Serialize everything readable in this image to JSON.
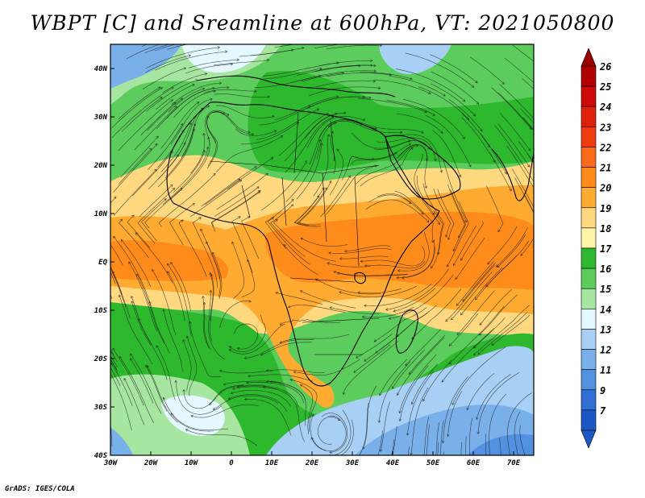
{
  "title": "WBPT [C] and Sreamline at 600hPa, VT: 2021050800",
  "credit": "GrADS: IGES/COLA",
  "map": {
    "lon_range": [
      -30,
      75
    ],
    "lat_range": [
      -40,
      45
    ],
    "lat_labels": [
      "40N",
      "30N",
      "20N",
      "10N",
      "EQ",
      "10S",
      "20S",
      "30S",
      "40S"
    ],
    "lon_labels": [
      "30W",
      "20W",
      "10W",
      "0",
      "10E",
      "20E",
      "30E",
      "40E",
      "50E",
      "60E",
      "70E"
    ],
    "grid": false
  },
  "colorbar": {
    "labels": [
      "26",
      "25",
      "24",
      "23",
      "22",
      "21",
      "20",
      "19",
      "18",
      "17",
      "16",
      "15",
      "14",
      "13",
      "12",
      "11",
      "9",
      "7"
    ],
    "colors": [
      "#b00000",
      "#cc0a0a",
      "#e0200a",
      "#ef3c0f",
      "#fb6a18",
      "#ff8c1a",
      "#ffaa30",
      "#ffd880",
      "#fff4a8",
      "#2eb82e",
      "#5ccc5c",
      "#a6e6a0",
      "#e6f8ff",
      "#a8d0f5",
      "#7ab0ea",
      "#5290e0",
      "#3070d4",
      "#1c58c4"
    ]
  }
}
